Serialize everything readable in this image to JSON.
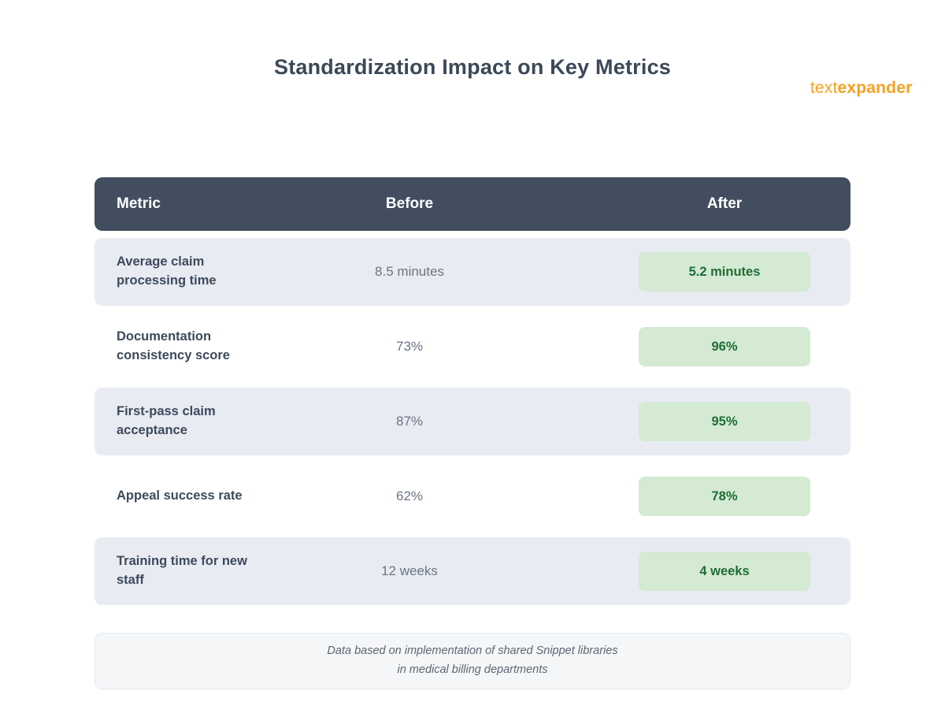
{
  "logo": {
    "part1": "text",
    "part2": "expander",
    "mark": "·"
  },
  "title": "Standardization Impact on Key Metrics",
  "table": {
    "headers": {
      "metric": "Metric",
      "before": "Before",
      "after": "After"
    },
    "rows": [
      {
        "metric": "Average claim processing time",
        "before": "8.5 minutes",
        "after": "5.2 minutes"
      },
      {
        "metric": "Documentation consistency score",
        "before": "73%",
        "after": "96%"
      },
      {
        "metric": "First-pass claim acceptance",
        "before": "87%",
        "after": "95%"
      },
      {
        "metric": "Appeal success rate",
        "before": "62%",
        "after": "78%"
      },
      {
        "metric": "Training time for new staff",
        "before": "12 weeks",
        "after": "4 weeks"
      }
    ]
  },
  "footer": {
    "line1": "Data based on implementation of shared Snippet libraries",
    "line2": "in medical billing departments"
  },
  "colors": {
    "header_bg": "#424E60",
    "row_alt_bg": "#E8EBF2",
    "badge_bg": "#D4EAD3",
    "badge_text": "#1F6D34",
    "accent_orange": "#F6A11F"
  },
  "chart_data": {
    "type": "table",
    "title": "Standardization Impact on Key Metrics",
    "columns": [
      "Metric",
      "Before",
      "After"
    ],
    "rows": [
      [
        "Average claim processing time",
        "8.5 minutes",
        "5.2 minutes"
      ],
      [
        "Documentation consistency score",
        "73%",
        "96%"
      ],
      [
        "First-pass claim acceptance",
        "87%",
        "95%"
      ],
      [
        "Appeal success rate",
        "62%",
        "78%"
      ],
      [
        "Training time for new staff",
        "12 weeks",
        "4 weeks"
      ]
    ],
    "note": "Data based on implementation of shared Snippet libraries in medical billing departments"
  }
}
